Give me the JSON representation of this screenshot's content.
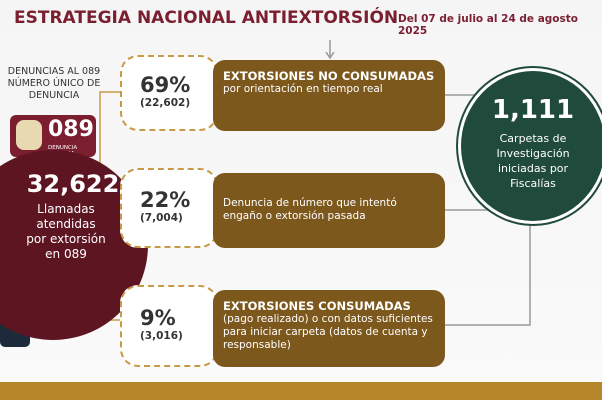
{
  "header": {
    "title": "ESTRATEGIA NACIONAL ANTIEXTORSIÓN",
    "dates": "Del 07 de julio al 24 de agosto 2025"
  },
  "left": {
    "intro": "DENUNCIAS AL 089 NÚMERO ÚNICO DE DENUNCIA",
    "logo": "089",
    "logo_caption": "DENUNCIA ANÓNIMA",
    "total": "32,622",
    "total_label": "Llamadas atendidas por extorsión en 089"
  },
  "items": [
    {
      "percent": "69%",
      "count": "(22,602)",
      "heading": "EXTORSIONES NO CONSUMADAS",
      "text": "por orientación en tiempo real"
    },
    {
      "percent": "22%",
      "count": "(7,004)",
      "text": "Denuncia de número que intentó engaño o extorsión pasada"
    },
    {
      "percent": "9%",
      "count": "(3,016)",
      "heading": "EXTORSIONES CONSUMADAS",
      "text": "(pago realizado) o con datos suficientes para iniciar carpeta (datos de cuenta y responsable)"
    }
  ],
  "right": {
    "total": "1,111",
    "label": "Carpetas de Investigación iniciadas por Fiscalías"
  }
}
